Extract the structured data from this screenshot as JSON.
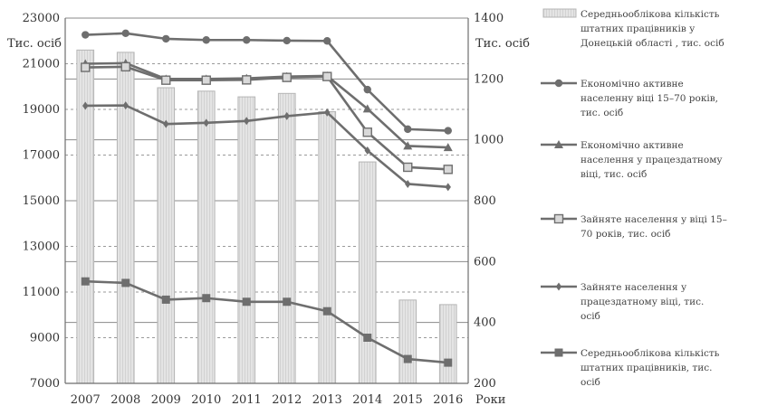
{
  "chart_data": {
    "type": "bar+line",
    "x": [
      "2007",
      "2008",
      "2009",
      "2010",
      "2011",
      "2012",
      "2013",
      "2014",
      "2015",
      "2016"
    ],
    "xlabel": "Роки",
    "y_left_label": "Тис. осіб",
    "y_right_label": "Тис. осіб",
    "y_left_ticks": [
      "7000",
      "9000",
      "11000",
      "13000",
      "15000",
      "17000",
      "19000",
      "21000",
      "23000"
    ],
    "y_right_ticks": [
      "200",
      "400",
      "600",
      "800",
      "1000",
      "1200",
      "1400"
    ],
    "ylim_left": [
      7000,
      23000
    ],
    "ylim_right": [
      200,
      1400
    ],
    "grid": "dashed horizontal",
    "legend_position": "right",
    "series": [
      {
        "name": "Середньооблікова кількість штатних працівників у Донецькій області , тис. осіб",
        "type": "bar",
        "axis": "left",
        "values": [
          21600,
          21500,
          19950,
          19800,
          19550,
          19700,
          18900,
          16700,
          10650,
          10450
        ]
      },
      {
        "name": "Економічно активне населенну віці 15–70 років, тис. осіб",
        "type": "line",
        "marker": "circle",
        "axis": "right",
        "values": [
          1345,
          1350,
          1332,
          1328,
          1328,
          1326,
          1325,
          1165,
          1035,
          1030
        ]
      },
      {
        "name": "Економічно активне населення у працездатному віці, тис. осіб",
        "type": "line",
        "marker": "triangle",
        "axis": "right",
        "values": [
          1250,
          1252,
          1200,
          1200,
          1202,
          1208,
          1210,
          1102,
          980,
          975
        ]
      },
      {
        "name": "Зайняте населення у віці 15–70 років, тис. осіб",
        "type": "line",
        "marker": "square-open",
        "axis": "right",
        "values": [
          1238,
          1240,
          1196,
          1196,
          1197,
          1205,
          1208,
          1025,
          910,
          903
        ]
      },
      {
        "name": "Зайняте населення у працездатному віці, тис. осіб",
        "type": "line",
        "marker": "diamond",
        "axis": "right",
        "values": [
          1112,
          1113,
          1052,
          1056,
          1062,
          1078,
          1090,
          965,
          855,
          845
        ]
      },
      {
        "name": "Середньооблікова кількість штатних працівників, тис. осіб",
        "type": "line",
        "marker": "square",
        "axis": "right",
        "values": [
          535,
          530,
          475,
          480,
          468,
          468,
          437,
          350,
          280,
          268
        ]
      }
    ],
    "colors": {
      "bar_fill": "#e4e4e4",
      "bar_stroke": "#b5b5b5",
      "line": "#6e6e6e",
      "grid": "#9a9a9a",
      "axis": "#6e6e6e",
      "text": "#333333"
    }
  }
}
